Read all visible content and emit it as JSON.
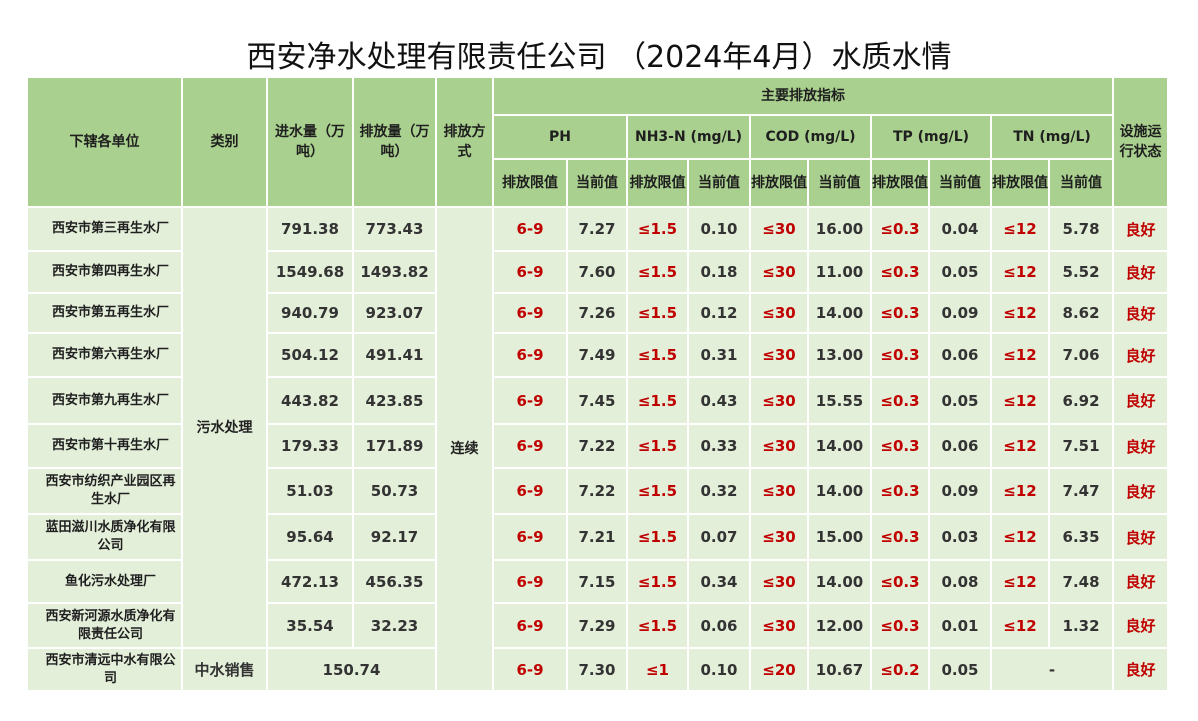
{
  "title": "西安净水处理有限责任公司  （2024年4月）水质水情",
  "headers": {
    "unit": "下辖各单位",
    "category": "类别",
    "inflow": "进水量（万吨）",
    "outflow": "排放量（万吨）",
    "mode": "排放方式",
    "indicators": "主要排放指标",
    "status": "设施运行状态",
    "ph": "PH",
    "nh3": "NH3-N (mg/L)",
    "cod": "COD (mg/L)",
    "tp": "TP (mg/L)",
    "tn": "TN (mg/L)",
    "limit": "排放限值",
    "current": "当前值"
  },
  "category_sewage": "污水处理",
  "category_reclaimed": "中水销售",
  "mode_value": "连续",
  "rows": [
    {
      "unit": "西安市第三再生水厂",
      "in": "791.38",
      "out": "773.43",
      "ph_l": "6-9",
      "ph": "7.27",
      "nh_l": "≤1.5",
      "nh": "0.10",
      "cod_l": "≤30",
      "cod": "16.00",
      "tp_l": "≤0.3",
      "tp": "0.04",
      "tn_l": "≤12",
      "tn": "5.78",
      "status": "良好"
    },
    {
      "unit": "西安市第四再生水厂",
      "in": "1549.68",
      "out": "1493.82",
      "ph_l": "6-9",
      "ph": "7.60",
      "nh_l": "≤1.5",
      "nh": "0.18",
      "cod_l": "≤30",
      "cod": "11.00",
      "tp_l": "≤0.3",
      "tp": "0.05",
      "tn_l": "≤12",
      "tn": "5.52",
      "status": "良好"
    },
    {
      "unit": "西安市第五再生水厂",
      "in": "940.79",
      "out": "923.07",
      "ph_l": "6-9",
      "ph": "7.26",
      "nh_l": "≤1.5",
      "nh": "0.12",
      "cod_l": "≤30",
      "cod": "14.00",
      "tp_l": "≤0.3",
      "tp": "0.09",
      "tn_l": "≤12",
      "tn": "8.62",
      "status": "良好"
    },
    {
      "unit": "西安市第六再生水厂",
      "in": "504.12",
      "out": "491.41",
      "ph_l": "6-9",
      "ph": "7.49",
      "nh_l": "≤1.5",
      "nh": "0.31",
      "cod_l": "≤30",
      "cod": "13.00",
      "tp_l": "≤0.3",
      "tp": "0.06",
      "tn_l": "≤12",
      "tn": "7.06",
      "status": "良好"
    },
    {
      "unit": "西安市第九再生水厂",
      "in": "443.82",
      "out": "423.85",
      "ph_l": "6-9",
      "ph": "7.45",
      "nh_l": "≤1.5",
      "nh": "0.43",
      "cod_l": "≤30",
      "cod": "15.55",
      "tp_l": "≤0.3",
      "tp": "0.05",
      "tn_l": "≤12",
      "tn": "6.92",
      "status": "良好"
    },
    {
      "unit": "西安市第十再生水厂",
      "in": "179.33",
      "out": "171.89",
      "ph_l": "6-9",
      "ph": "7.22",
      "nh_l": "≤1.5",
      "nh": "0.33",
      "cod_l": "≤30",
      "cod": "14.00",
      "tp_l": "≤0.3",
      "tp": "0.06",
      "tn_l": "≤12",
      "tn": "7.51",
      "status": "良好"
    },
    {
      "unit": "西安市纺织产业园区再生水厂",
      "in": "51.03",
      "out": "50.73",
      "ph_l": "6-9",
      "ph": "7.22",
      "nh_l": "≤1.5",
      "nh": "0.32",
      "cod_l": "≤30",
      "cod": "14.00",
      "tp_l": "≤0.3",
      "tp": "0.09",
      "tn_l": "≤12",
      "tn": "7.47",
      "status": "良好"
    },
    {
      "unit": "蓝田滋川水质净化有限公司",
      "in": "95.64",
      "out": "92.17",
      "ph_l": "6-9",
      "ph": "7.21",
      "nh_l": "≤1.5",
      "nh": "0.07",
      "cod_l": "≤30",
      "cod": "15.00",
      "tp_l": "≤0.3",
      "tp": "0.03",
      "tn_l": "≤12",
      "tn": "6.35",
      "status": "良好"
    },
    {
      "unit": "鱼化污水处理厂",
      "in": "472.13",
      "out": "456.35",
      "ph_l": "6-9",
      "ph": "7.15",
      "nh_l": "≤1.5",
      "nh": "0.34",
      "cod_l": "≤30",
      "cod": "14.00",
      "tp_l": "≤0.3",
      "tp": "0.08",
      "tn_l": "≤12",
      "tn": "7.48",
      "status": "良好"
    },
    {
      "unit": "西安新河源水质净化有限责任公司",
      "in": "35.54",
      "out": "32.23",
      "ph_l": "6-9",
      "ph": "7.29",
      "nh_l": "≤1.5",
      "nh": "0.06",
      "cod_l": "≤30",
      "cod": "12.00",
      "tp_l": "≤0.3",
      "tp": "0.01",
      "tn_l": "≤12",
      "tn": "1.32",
      "status": "良好"
    },
    {
      "unit": "西安市清远中水有限公司",
      "in": "150.74",
      "out": "",
      "ph_l": "6-9",
      "ph": "7.30",
      "nh_l": "≤1",
      "nh": "0.10",
      "cod_l": "≤20",
      "cod": "10.67",
      "tp_l": "≤0.2",
      "tp": "0.05",
      "tn_l": "-",
      "tn": "",
      "status": "良好"
    }
  ],
  "colors": {
    "header": "#a9d08e",
    "body": "#e3efd9",
    "limit_red": "#c00000"
  }
}
